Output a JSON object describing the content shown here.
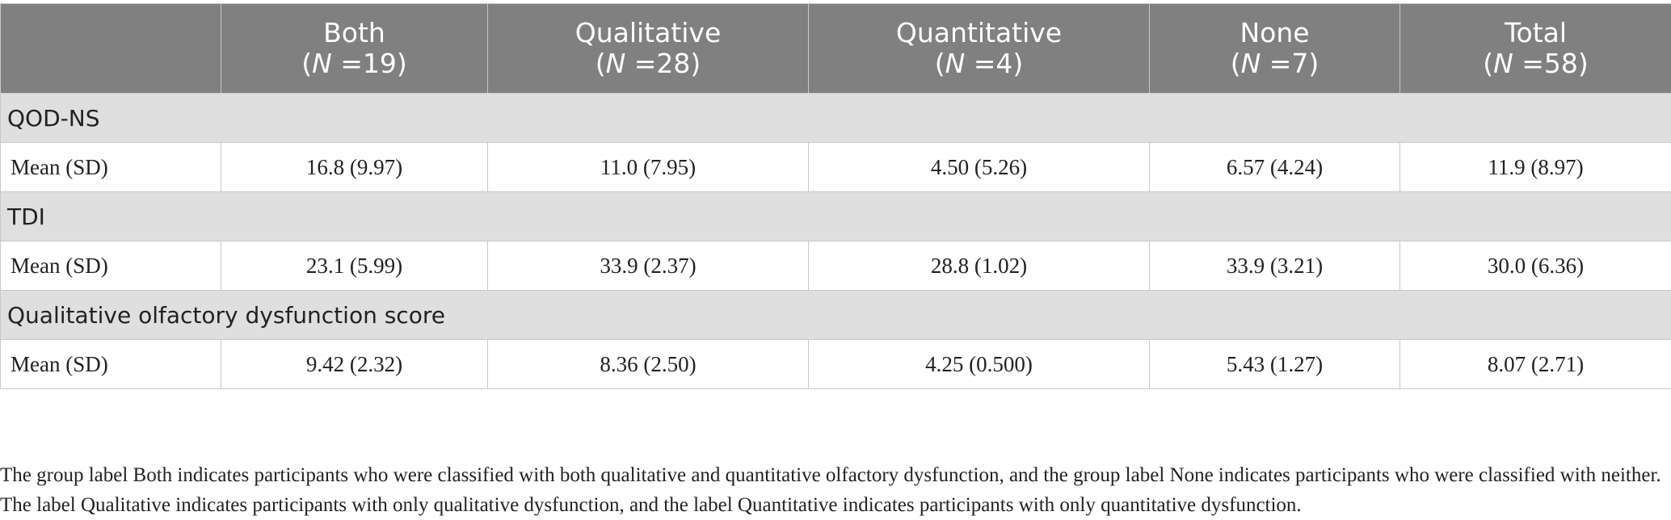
{
  "columns": [
    {
      "name": "Both",
      "n_label": "N",
      "n_value": " =19)"
    },
    {
      "name": "Qualitative",
      "n_label": "N",
      "n_value": " =28)"
    },
    {
      "name": "Quantitative",
      "n_label": "N",
      "n_value": " =4)"
    },
    {
      "name": "None",
      "n_label": "N",
      "n_value": " =7)"
    },
    {
      "name": "Total",
      "n_label": "N",
      "n_value": " =58)"
    }
  ],
  "sections": [
    {
      "title": "QOD-NS",
      "row_label": "Mean (SD)",
      "values": [
        "16.8 (9.97)",
        "11.0 (7.95)",
        "4.50 (5.26)",
        "6.57 (4.24)",
        "11.9 (8.97)"
      ]
    },
    {
      "title": "TDI",
      "row_label": "Mean (SD)",
      "values": [
        "23.1 (5.99)",
        "33.9 (2.37)",
        "28.8 (1.02)",
        "33.9 (3.21)",
        "30.0 (6.36)"
      ]
    },
    {
      "title": "Qualitative olfactory dysfunction score",
      "row_label": "Mean (SD)",
      "values": [
        "9.42 (2.32)",
        "8.36 (2.50)",
        "4.25 (0.500)",
        "5.43 (1.27)",
        "8.07 (2.71)"
      ]
    }
  ],
  "footnote": "The group label Both indicates participants who were classified with both qualitative and quantitative olfactory dysfunction, and the group label None indicates participants who were classified with neither. The label Qualitative indicates participants with only qualitative dysfunction, and the label Quantitative indicates participants with only quantitative dysfunction."
}
